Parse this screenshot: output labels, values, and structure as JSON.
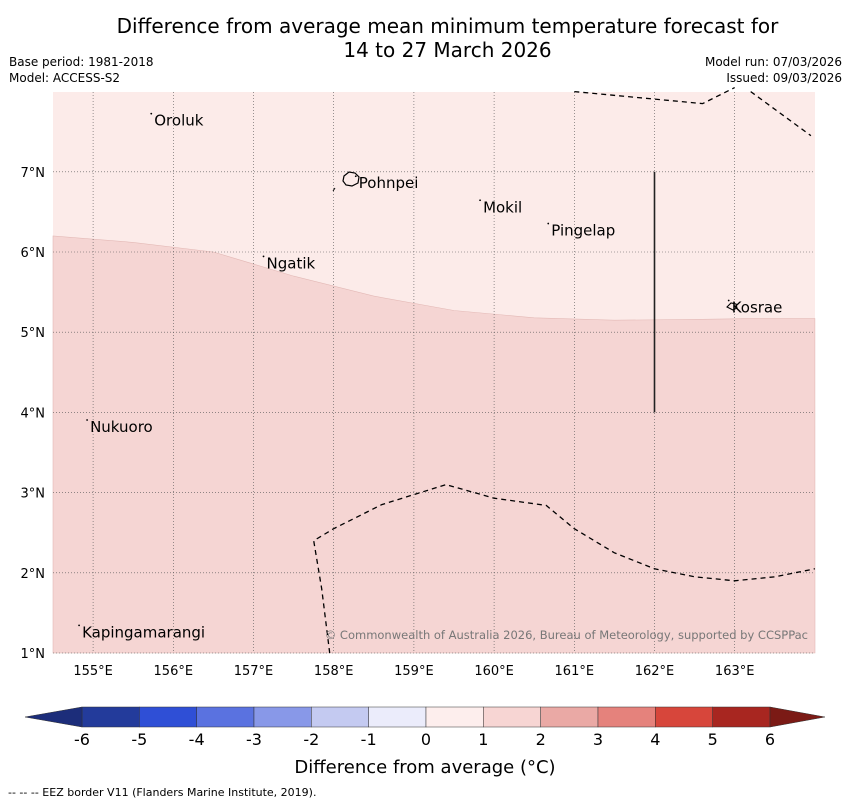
{
  "title": {
    "line1": "Difference from average mean minimum temperature forecast for",
    "line2": "14 to 27 March 2026"
  },
  "meta": {
    "base_period": "Base period: 1981-2018",
    "model": "Model: ACCESS-S2",
    "model_run": "Model run: 07/03/2026",
    "issued": "Issued: 09/03/2026"
  },
  "map": {
    "lon_range": [
      154.5,
      164.0
    ],
    "lat_range": [
      1.0,
      8.0
    ],
    "lon_ticks": [
      {
        "value": 155,
        "label": "155°E"
      },
      {
        "value": 156,
        "label": "156°E"
      },
      {
        "value": 157,
        "label": "157°E"
      },
      {
        "value": 158,
        "label": "158°E"
      },
      {
        "value": 159,
        "label": "159°E"
      },
      {
        "value": 160,
        "label": "160°E"
      },
      {
        "value": 161,
        "label": "161°E"
      },
      {
        "value": 162,
        "label": "162°E"
      },
      {
        "value": 163,
        "label": "163°E"
      }
    ],
    "lat_ticks": [
      {
        "value": 7,
        "label": "7°N"
      },
      {
        "value": 6,
        "label": "6°N"
      },
      {
        "value": 5,
        "label": "5°N"
      },
      {
        "value": 4,
        "label": "4°N"
      },
      {
        "value": 3,
        "label": "3°N"
      },
      {
        "value": 2,
        "label": "2°N"
      },
      {
        "value": 1,
        "label": "1°N"
      }
    ],
    "fill_colors": {
      "low_band": "#fcebe9",
      "high_band": "#f5d5d3"
    },
    "band_boundary": [
      [
        154.5,
        6.2
      ],
      [
        155.5,
        6.12
      ],
      [
        156.5,
        6.0
      ],
      [
        157.5,
        5.7
      ],
      [
        158.5,
        5.45
      ],
      [
        159.5,
        5.27
      ],
      [
        160.5,
        5.18
      ],
      [
        161.5,
        5.15
      ],
      [
        162.5,
        5.16
      ],
      [
        163.2,
        5.17
      ],
      [
        164.0,
        5.17
      ]
    ],
    "places": [
      {
        "name": "Oroluk",
        "lon": 155.75,
        "lat": 7.65
      },
      {
        "name": "Pohnpei",
        "lon": 158.3,
        "lat": 6.87
      },
      {
        "name": "Mokil",
        "lon": 159.85,
        "lat": 6.57
      },
      {
        "name": "Pingelap",
        "lon": 160.7,
        "lat": 6.28
      },
      {
        "name": "Ngatik",
        "lon": 157.15,
        "lat": 5.87
      },
      {
        "name": "Kosrae",
        "lon": 162.95,
        "lat": 5.32
      },
      {
        "name": "Nukuoro",
        "lon": 154.95,
        "lat": 3.83
      },
      {
        "name": "Kapingamarangi",
        "lon": 154.85,
        "lat": 1.27
      }
    ],
    "eez_lines": [
      [
        [
          161.0,
          8.0
        ],
        [
          162.6,
          7.85
        ],
        [
          163.0,
          8.05
        ]
      ],
      [
        [
          163.2,
          8.0
        ],
        [
          163.95,
          7.45
        ]
      ],
      [
        [
          157.95,
          1.0
        ],
        [
          157.85,
          1.8
        ],
        [
          157.75,
          2.4
        ],
        [
          158.0,
          2.55
        ],
        [
          158.6,
          2.85
        ],
        [
          159.4,
          3.1
        ],
        [
          160.0,
          2.93
        ],
        [
          160.65,
          2.84
        ],
        [
          161.0,
          2.55
        ],
        [
          161.5,
          2.25
        ],
        [
          162.0,
          2.05
        ],
        [
          162.5,
          1.95
        ],
        [
          163.0,
          1.9
        ],
        [
          163.5,
          1.95
        ],
        [
          164.0,
          2.05
        ]
      ]
    ],
    "solid_line": [
      [
        162.0,
        7.0
      ],
      [
        162.0,
        4.0
      ]
    ],
    "copyright": "© Commonwealth of Australia 2026, Bureau of Meteorology, supported by CCSPPac"
  },
  "colorbar": {
    "title": "Difference from average (°C)",
    "ticks": [
      "-6",
      "-5",
      "-4",
      "-3",
      "-2",
      "-1",
      "0",
      "1",
      "2",
      "3",
      "4",
      "5",
      "6"
    ],
    "colors": [
      "#233b9b",
      "#2f4fd6",
      "#5a72e0",
      "#8898e8",
      "#c4caf1",
      "#ebecfb",
      "#fdeeed",
      "#f7d5d3",
      "#eaa9a5",
      "#e5827c",
      "#d7463b",
      "#a82620"
    ],
    "extend_low": "#1c2d7a",
    "extend_high": "#7b1a15"
  },
  "footnote": "--  --  -- EEZ border V11 (Flanders Marine Institute, 2019)."
}
